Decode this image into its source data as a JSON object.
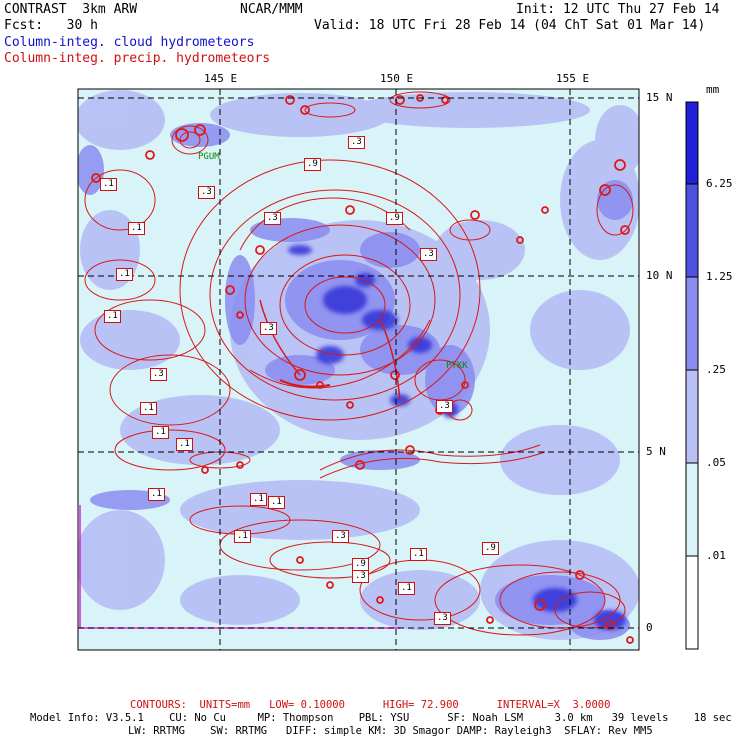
{
  "header": {
    "model": "CONTRAST  3km ARW",
    "center": "NCAR/MMM",
    "init": "Init: 12 UTC Thu 27 Feb 14",
    "fcst": "Fcst:   30 h",
    "valid": "Valid: 18 UTC Fri 28 Feb 14 (04 ChT Sat 01 Mar 14)",
    "field_cloud": "Column-integ. cloud hydrometeors",
    "field_precip": "Column-integ. precip. hydrometeors"
  },
  "map": {
    "lon_labels": [
      "145 E",
      "150 E",
      "155 E"
    ],
    "lat_labels": [
      "15 N",
      "10 N",
      "5 N",
      "0"
    ],
    "station_labels": [
      "PGUM",
      "PTKK"
    ],
    "contour_labels": [
      ".1",
      ".1",
      ".1",
      ".1",
      ".1",
      ".1",
      ".1",
      ".1",
      ".1",
      ".1",
      ".1",
      ".1",
      ".1",
      ".3",
      ".3",
      ".3",
      ".3",
      ".3",
      ".3",
      ".3",
      ".3",
      ".3",
      ".3",
      ".9",
      ".9",
      ".9",
      ".9"
    ]
  },
  "colorbar": {
    "unit": "mm",
    "levels": [
      "6.25",
      "1.25",
      ".25",
      ".05",
      ".01"
    ],
    "colors": [
      "#2020d8",
      "#5050e0",
      "#8a8cf0",
      "#b8c0f4",
      "#d8f4f8",
      "#ffffff"
    ]
  },
  "footer": {
    "contours": "CONTOURS:  UNITS=mm   LOW= 0.10000      HIGH= 72.900      INTERVAL=X  3.0000",
    "line1": "Model Info: V3.5.1    CU: No Cu     MP: Thompson    PBL: YSU      SF: Noah LSM     3.0 km   39 levels    18 sec",
    "line2": "LW: RRTMG    SW: RRTMG   DIFF: simple KM: 3D Smagor DAMP: Rayleigh3  SFLAY: Rev MM5"
  }
}
